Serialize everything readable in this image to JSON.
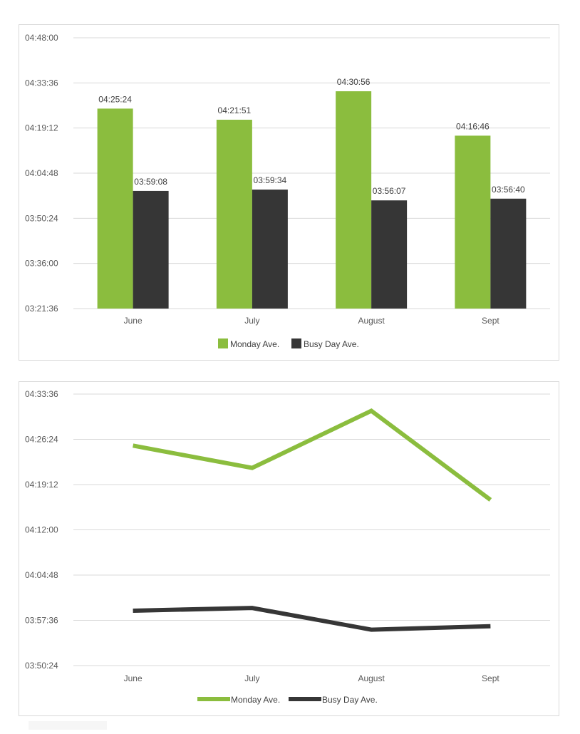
{
  "chart_data": [
    {
      "type": "bar",
      "categories": [
        "June",
        "July",
        "August",
        "Sept"
      ],
      "series": [
        {
          "name": "Monday Ave.",
          "color": "#8bbd3e",
          "values": [
            "04:25:24",
            "04:21:51",
            "04:30:56",
            "04:16:46"
          ]
        },
        {
          "name": "Busy Day Ave.",
          "color": "#363636",
          "values": [
            "03:59:08",
            "03:59:34",
            "03:56:07",
            "03:56:40"
          ]
        }
      ],
      "y_ticks": [
        "04:48:00",
        "04:33:36",
        "04:19:12",
        "04:04:48",
        "03:50:24",
        "03:36:00",
        "03:21:36"
      ],
      "ylim": [
        "03:21:36",
        "04:48:00"
      ],
      "grid": true,
      "legend_position": "bottom"
    },
    {
      "type": "line",
      "categories": [
        "June",
        "July",
        "August",
        "Sept"
      ],
      "series": [
        {
          "name": "Monday Ave.",
          "color": "#8bbd3e",
          "values": [
            "04:25:24",
            "04:21:51",
            "04:30:56",
            "04:16:46"
          ]
        },
        {
          "name": "Busy Day Ave.",
          "color": "#363636",
          "values": [
            "03:59:08",
            "03:59:34",
            "03:56:07",
            "03:56:40"
          ]
        }
      ],
      "y_ticks": [
        "04:33:36",
        "04:26:24",
        "04:19:12",
        "04:12:00",
        "04:04:48",
        "03:57:36",
        "03:50:24"
      ],
      "ylim": [
        "03:50:24",
        "04:33:36"
      ],
      "grid": true,
      "legend_position": "bottom"
    }
  ]
}
